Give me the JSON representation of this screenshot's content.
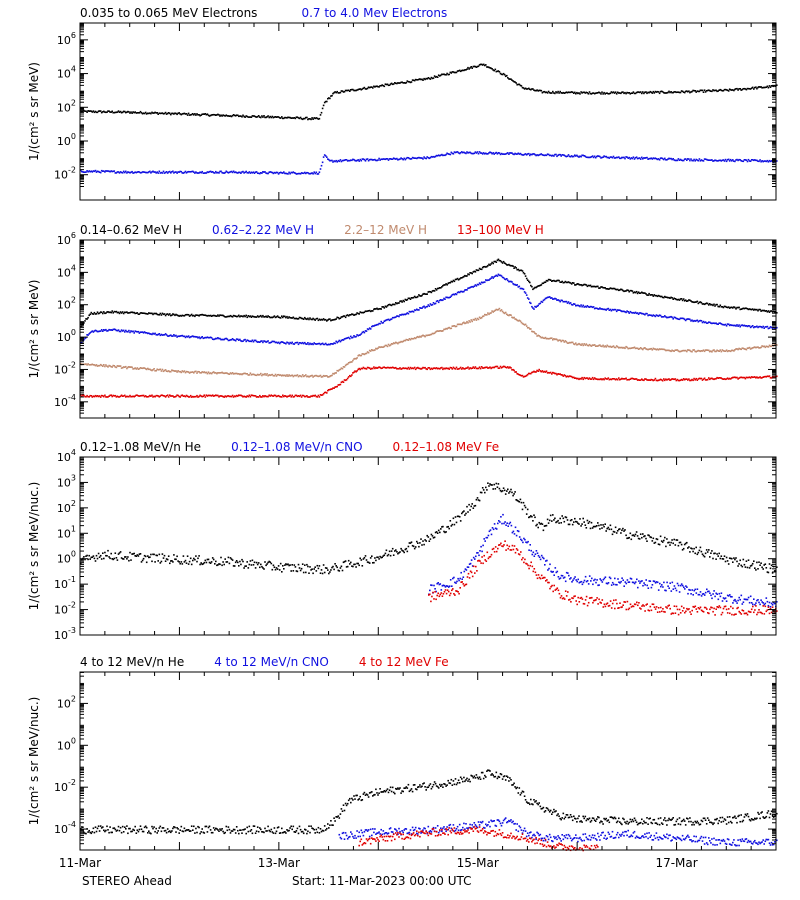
{
  "footer": {
    "spacecraft": "STEREO Ahead",
    "start": "Start: 11-Mar-2023 00:00 UTC"
  },
  "colors": {
    "black": "#000000",
    "blue": "#1010e0",
    "tan": "#c08a6e",
    "red": "#e00000"
  },
  "x_axis": {
    "range_days": [
      0,
      7
    ],
    "ticks": [
      {
        "day": 0,
        "label": "11-Mar"
      },
      {
        "day": 2,
        "label": "13-Mar"
      },
      {
        "day": 4,
        "label": "15-Mar"
      },
      {
        "day": 6,
        "label": "17-Mar"
      }
    ]
  },
  "chart_data": [
    {
      "type": "scatter",
      "ylabel": "1/(cm² s sr MeV)",
      "yscale": "log",
      "ylim_exp": [
        -3.5,
        7
      ],
      "yticks": [
        {
          "base": "10",
          "exp": "-2"
        },
        {
          "base": "10",
          "exp": "0"
        },
        {
          "base": "10",
          "exp": "2"
        },
        {
          "base": "10",
          "exp": "4"
        },
        {
          "base": "10",
          "exp": "6"
        }
      ],
      "series": [
        {
          "name": "0.035 to 0.065 MeV Electrons",
          "color": "black",
          "points": [
            [
              0,
              1.8
            ],
            [
              0.5,
              1.75
            ],
            [
              1,
              1.65
            ],
            [
              1.5,
              1.55
            ],
            [
              2,
              1.45
            ],
            [
              2.2,
              1.4
            ],
            [
              2.4,
              1.35
            ],
            [
              2.45,
              2.3
            ],
            [
              2.55,
              2.9
            ],
            [
              3,
              3.3
            ],
            [
              3.5,
              3.75
            ],
            [
              3.8,
              4.2
            ],
            [
              4.05,
              4.6
            ],
            [
              4.25,
              4
            ],
            [
              4.45,
              3.2
            ],
            [
              4.65,
              2.95
            ],
            [
              5,
              2.9
            ],
            [
              5.5,
              2.9
            ],
            [
              6,
              2.95
            ],
            [
              6.5,
              3.05
            ],
            [
              7,
              3.3
            ]
          ]
        },
        {
          "name": "0.7 to 4.0 Mev Electrons",
          "color": "blue",
          "points": [
            [
              0,
              -1.75
            ],
            [
              0.5,
              -1.8
            ],
            [
              1,
              -1.8
            ],
            [
              1.5,
              -1.8
            ],
            [
              2,
              -1.85
            ],
            [
              2.4,
              -1.85
            ],
            [
              2.45,
              -0.8
            ],
            [
              2.5,
              -1.15
            ],
            [
              3,
              -1.05
            ],
            [
              3.5,
              -0.95
            ],
            [
              3.75,
              -0.65
            ],
            [
              4,
              -0.65
            ],
            [
              4.5,
              -0.75
            ],
            [
              5,
              -0.85
            ],
            [
              5.5,
              -0.95
            ],
            [
              6,
              -1.05
            ],
            [
              6.5,
              -1.1
            ],
            [
              7,
              -1.15
            ]
          ]
        }
      ]
    },
    {
      "type": "scatter",
      "ylabel": "1/(cm² s sr MeV)",
      "yscale": "log",
      "ylim_exp": [
        -5,
        6
      ],
      "yticks": [
        {
          "base": "10",
          "exp": "-4"
        },
        {
          "base": "10",
          "exp": "-2"
        },
        {
          "base": "10",
          "exp": "0"
        },
        {
          "base": "10",
          "exp": "2"
        },
        {
          "base": "10",
          "exp": "4"
        },
        {
          "base": "10",
          "exp": "6"
        }
      ],
      "series": [
        {
          "name": "0.14–0.62 MeV H",
          "color": "black",
          "points": [
            [
              0,
              0.7
            ],
            [
              0.1,
              1.5
            ],
            [
              0.3,
              1.6
            ],
            [
              1,
              1.4
            ],
            [
              2,
              1.3
            ],
            [
              2.5,
              1.1
            ],
            [
              3,
              1.8
            ],
            [
              3.5,
              2.8
            ],
            [
              4,
              4.2
            ],
            [
              4.2,
              4.8
            ],
            [
              4.45,
              4.1
            ],
            [
              4.55,
              3
            ],
            [
              4.7,
              3.6
            ],
            [
              5,
              3.3
            ],
            [
              5.5,
              2.9
            ],
            [
              6,
              2.4
            ],
            [
              6.5,
              1.9
            ],
            [
              7,
              1.6
            ]
          ]
        },
        {
          "name": "0.62–2.22 MeV H",
          "color": "blue",
          "points": [
            [
              0,
              -0.3
            ],
            [
              0.1,
              0.4
            ],
            [
              0.3,
              0.5
            ],
            [
              1,
              0.1
            ],
            [
              2,
              -0.3
            ],
            [
              2.5,
              -0.4
            ],
            [
              2.8,
              0.2
            ],
            [
              3,
              0.9
            ],
            [
              3.5,
              2
            ],
            [
              4,
              3.3
            ],
            [
              4.2,
              3.9
            ],
            [
              4.45,
              3
            ],
            [
              4.55,
              1.8
            ],
            [
              4.7,
              2.5
            ],
            [
              5,
              2
            ],
            [
              5.5,
              1.6
            ],
            [
              6,
              1.2
            ],
            [
              6.5,
              0.8
            ],
            [
              7,
              0.6
            ]
          ]
        },
        {
          "name": "2.2–12 MeV H",
          "color": "tan",
          "points": [
            [
              0,
              -1.6
            ],
            [
              0.2,
              -1.7
            ],
            [
              1,
              -2.1
            ],
            [
              2,
              -2.3
            ],
            [
              2.5,
              -2.4
            ],
            [
              2.6,
              -2
            ],
            [
              2.8,
              -1.1
            ],
            [
              3,
              -0.6
            ],
            [
              3.5,
              0.2
            ],
            [
              4,
              1.2
            ],
            [
              4.2,
              1.8
            ],
            [
              4.45,
              0.9
            ],
            [
              4.6,
              0.1
            ],
            [
              5,
              -0.4
            ],
            [
              5.5,
              -0.6
            ],
            [
              6,
              -0.8
            ],
            [
              6.5,
              -0.8
            ],
            [
              7,
              -0.45
            ]
          ]
        },
        {
          "name": "13–100 MeV H",
          "color": "red",
          "points": [
            [
              0,
              -3.6
            ],
            [
              0.5,
              -3.6
            ],
            [
              1,
              -3.6
            ],
            [
              1.5,
              -3.6
            ],
            [
              2,
              -3.6
            ],
            [
              2.4,
              -3.6
            ],
            [
              2.6,
              -2.9
            ],
            [
              2.8,
              -1.9
            ],
            [
              3,
              -1.85
            ],
            [
              3.5,
              -1.9
            ],
            [
              4,
              -1.85
            ],
            [
              4.3,
              -1.8
            ],
            [
              4.45,
              -2.4
            ],
            [
              4.6,
              -2
            ],
            [
              5,
              -2.5
            ],
            [
              5.5,
              -2.55
            ],
            [
              6,
              -2.6
            ],
            [
              6.5,
              -2.5
            ],
            [
              7,
              -2.4
            ]
          ]
        }
      ]
    },
    {
      "type": "scatter",
      "ylabel": "1/(cm² s sr MeV/nuc.)",
      "yscale": "log",
      "ylim_exp": [
        -3,
        4
      ],
      "yticks": [
        {
          "base": "10",
          "exp": "-3"
        },
        {
          "base": "10",
          "exp": "-2"
        },
        {
          "base": "10",
          "exp": "-1"
        },
        {
          "base": "10",
          "exp": "0"
        },
        {
          "base": "10",
          "exp": "1"
        },
        {
          "base": "10",
          "exp": "2"
        },
        {
          "base": "10",
          "exp": "3"
        },
        {
          "base": "10",
          "exp": "4"
        }
      ],
      "series": [
        {
          "name": "0.12–1.08 MeV/n He",
          "color": "black",
          "points": [
            [
              0,
              -0.1
            ],
            [
              0.2,
              0.2
            ],
            [
              0.5,
              0.1
            ],
            [
              1,
              0
            ],
            [
              1.5,
              -0.1
            ],
            [
              2,
              -0.3
            ],
            [
              2.5,
              -0.4
            ],
            [
              3,
              0.1
            ],
            [
              3.5,
              0.8
            ],
            [
              3.8,
              1.6
            ],
            [
              4,
              2.4
            ],
            [
              4.1,
              3
            ],
            [
              4.35,
              2.6
            ],
            [
              4.55,
              1.6
            ],
            [
              4.65,
              1.2
            ],
            [
              4.7,
              1.6
            ],
            [
              5,
              1.5
            ],
            [
              5.5,
              1
            ],
            [
              6,
              0.6
            ],
            [
              6.5,
              0
            ],
            [
              7,
              -0.4
            ]
          ]
        },
        {
          "name": "0.12–1.08 MeV/n CNO",
          "color": "blue",
          "points": [
            [
              3.5,
              -1.2
            ],
            [
              3.8,
              -0.8
            ],
            [
              4,
              0.2
            ],
            [
              4.1,
              1
            ],
            [
              4.25,
              1.6
            ],
            [
              4.4,
              1
            ],
            [
              4.6,
              0.1
            ],
            [
              4.8,
              -0.6
            ],
            [
              5,
              -0.8
            ],
            [
              5.5,
              -0.9
            ],
            [
              6,
              -1.1
            ],
            [
              6.5,
              -1.5
            ],
            [
              7,
              -1.75
            ]
          ]
        },
        {
          "name": "0.12–1.08 MeV Fe",
          "color": "red",
          "points": [
            [
              3.5,
              -1.5
            ],
            [
              3.8,
              -1.2
            ],
            [
              4,
              -0.2
            ],
            [
              4.1,
              0.2
            ],
            [
              4.25,
              0.6
            ],
            [
              4.4,
              0.3
            ],
            [
              4.6,
              -0.6
            ],
            [
              4.8,
              -1.3
            ],
            [
              5,
              -1.6
            ],
            [
              5.5,
              -1.8
            ],
            [
              6,
              -2
            ],
            [
              6.5,
              -2
            ],
            [
              7,
              -2
            ]
          ]
        }
      ]
    },
    {
      "type": "scatter",
      "ylabel": "1/(cm² s sr MeV/nuc.)",
      "yscale": "log",
      "ylim_exp": [
        -5,
        3.5
      ],
      "yticks": [
        {
          "base": "10",
          "exp": "-4"
        },
        {
          "base": "10",
          "exp": "-2"
        },
        {
          "base": "10",
          "exp": "0"
        },
        {
          "base": "10",
          "exp": "2"
        }
      ],
      "series": [
        {
          "name": "4 to 12 MeV/n He",
          "color": "black",
          "points": [
            [
              0,
              -4
            ],
            [
              0.5,
              -4
            ],
            [
              1,
              -4
            ],
            [
              1.5,
              -4
            ],
            [
              2,
              -4
            ],
            [
              2.4,
              -4
            ],
            [
              2.55,
              -3.6
            ],
            [
              2.7,
              -2.6
            ],
            [
              3,
              -2.2
            ],
            [
              3.5,
              -1.9
            ],
            [
              4,
              -1.5
            ],
            [
              4.1,
              -1.3
            ],
            [
              4.3,
              -1.6
            ],
            [
              4.5,
              -2.6
            ],
            [
              4.8,
              -3.3
            ],
            [
              5,
              -3.5
            ],
            [
              5.5,
              -3.6
            ],
            [
              6,
              -3.6
            ],
            [
              6.5,
              -3.55
            ],
            [
              7,
              -3.2
            ]
          ]
        },
        {
          "name": "4 to 12 MeV/n CNO",
          "color": "blue",
          "points": [
            [
              2.6,
              -4.3
            ],
            [
              3,
              -4.1
            ],
            [
              3.5,
              -4
            ],
            [
              4,
              -3.8
            ],
            [
              4.3,
              -3.6
            ],
            [
              4.5,
              -4.2
            ],
            [
              4.7,
              -4.4
            ],
            [
              5,
              -4.4
            ],
            [
              5.5,
              -4.2
            ],
            [
              6,
              -4.4
            ],
            [
              6.5,
              -4.6
            ],
            [
              7,
              -4.6
            ]
          ]
        },
        {
          "name": "4 to 12 MeV Fe",
          "color": "red",
          "points": [
            [
              2.8,
              -4.6
            ],
            [
              3.2,
              -4.3
            ],
            [
              3.6,
              -4.1
            ],
            [
              4,
              -4
            ],
            [
              4.4,
              -4.3
            ],
            [
              4.8,
              -4.8
            ],
            [
              5.2,
              -4.9
            ]
          ]
        }
      ]
    }
  ]
}
